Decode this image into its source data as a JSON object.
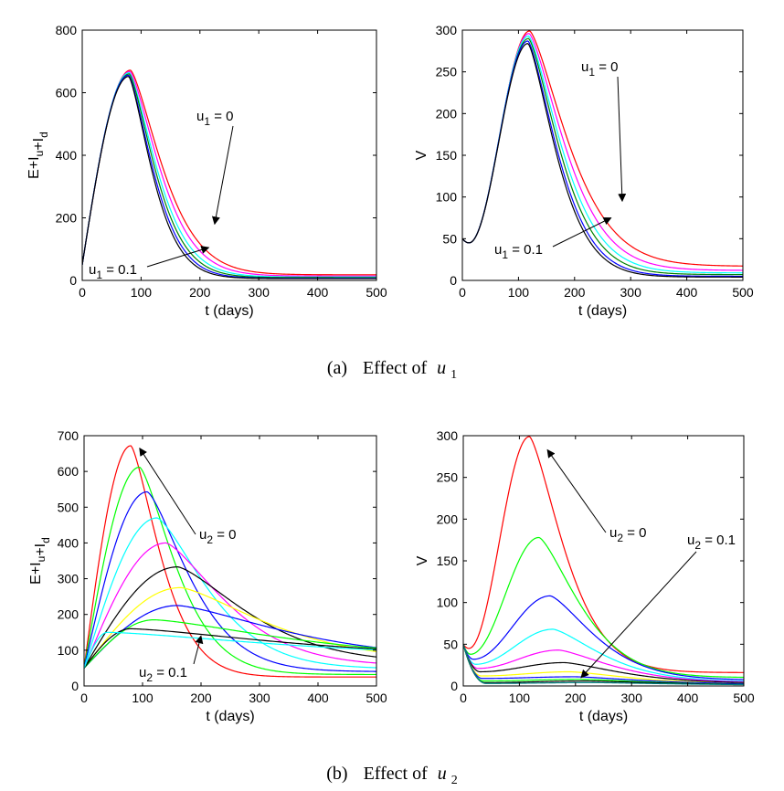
{
  "captions": {
    "a": {
      "prefix": "(a)",
      "text": "Effect of",
      "var": "u",
      "sub": "1"
    },
    "b": {
      "prefix": "(b)",
      "text": "Effect of",
      "var": "u",
      "sub": "2"
    }
  },
  "chart_data": [
    {
      "id": "a_left",
      "type": "line",
      "xlabel": "t (days)",
      "ylabel": "E+I_u+I_d",
      "xlim": [
        0,
        500
      ],
      "ylim": [
        0,
        800
      ],
      "xticks": [
        0,
        100,
        200,
        300,
        400,
        500
      ],
      "yticks": [
        0,
        200,
        400,
        600,
        800
      ],
      "grid": false,
      "annotations": [
        {
          "main": "u",
          "sub": "1",
          "rest": " = 0",
          "arrow_to": [
            225,
            180
          ]
        },
        {
          "main": "u",
          "sub": "1",
          "rest": " = 0.1",
          "arrow_to": [
            215,
            105
          ]
        }
      ],
      "series": [
        {
          "color": "#ff0000",
          "start": 50,
          "peak_t": 82,
          "peak": 672,
          "end": 18,
          "tau": 75
        },
        {
          "color": "#ff00ff",
          "start": 50,
          "peak_t": 81,
          "peak": 668,
          "end": 14,
          "tau": 70
        },
        {
          "color": "#00ffff",
          "start": 50,
          "peak_t": 80,
          "peak": 664,
          "end": 11,
          "tau": 65
        },
        {
          "color": "#008000",
          "start": 50,
          "peak_t": 80,
          "peak": 660,
          "end": 9,
          "tau": 61
        },
        {
          "color": "#0000ff",
          "start": 50,
          "peak_t": 79,
          "peak": 656,
          "end": 7,
          "tau": 58
        },
        {
          "color": "#000000",
          "start": 50,
          "peak_t": 79,
          "peak": 652,
          "end": 6,
          "tau": 55
        }
      ]
    },
    {
      "id": "a_right",
      "type": "line",
      "xlabel": "t (days)",
      "ylabel": "V",
      "xlim": [
        0,
        500
      ],
      "ylim": [
        0,
        300
      ],
      "xticks": [
        0,
        100,
        200,
        300,
        400,
        500
      ],
      "yticks": [
        0,
        50,
        100,
        150,
        200,
        250,
        300
      ],
      "grid": false,
      "annotations": [
        {
          "main": "u",
          "sub": "1",
          "rest": " = 0",
          "arrow_to": [
            285,
            95
          ]
        },
        {
          "main": "u",
          "sub": "1",
          "rest": " = 0.1",
          "arrow_to": [
            265,
            75
          ]
        }
      ],
      "series": [
        {
          "color": "#ff0000",
          "start": 50,
          "dip_t": 12,
          "dip": 45,
          "peak_t": 120,
          "peak": 299,
          "end": 17,
          "tau": 95
        },
        {
          "color": "#ff00ff",
          "start": 50,
          "dip_t": 12,
          "dip": 45,
          "peak_t": 119,
          "peak": 296,
          "end": 12,
          "tau": 88
        },
        {
          "color": "#00ffff",
          "start": 50,
          "dip_t": 12,
          "dip": 45,
          "peak_t": 118,
          "peak": 293,
          "end": 9,
          "tau": 82
        },
        {
          "color": "#008000",
          "start": 50,
          "dip_t": 12,
          "dip": 45,
          "peak_t": 118,
          "peak": 290,
          "end": 7,
          "tau": 77
        },
        {
          "color": "#0000ff",
          "start": 50,
          "dip_t": 12,
          "dip": 45,
          "peak_t": 117,
          "peak": 287,
          "end": 5,
          "tau": 73
        },
        {
          "color": "#000000",
          "start": 50,
          "dip_t": 12,
          "dip": 45,
          "peak_t": 117,
          "peak": 284,
          "end": 4,
          "tau": 70
        }
      ]
    },
    {
      "id": "b_left",
      "type": "line",
      "xlabel": "t (days)",
      "ylabel": "E+I_u+I_d",
      "xlim": [
        0,
        500
      ],
      "ylim": [
        0,
        700
      ],
      "xticks": [
        0,
        100,
        200,
        300,
        400,
        500
      ],
      "yticks": [
        0,
        100,
        200,
        300,
        400,
        500,
        600,
        700
      ],
      "grid": false,
      "annotations": [
        {
          "main": "u",
          "sub": "2",
          "rest": " = 0",
          "arrow_to": [
            95,
            665
          ]
        },
        {
          "main": "u",
          "sub": "2",
          "rest": " = 0.1",
          "arrow_to": [
            200,
            140
          ]
        }
      ],
      "series": [
        {
          "color": "#ff0000",
          "start": 50,
          "peak_t": 80,
          "peak": 672,
          "end": 25,
          "tau": 70
        },
        {
          "color": "#00ff00",
          "start": 50,
          "peak_t": 95,
          "peak": 612,
          "end": 32,
          "tau": 85
        },
        {
          "color": "#0000ff",
          "start": 50,
          "peak_t": 108,
          "peak": 543,
          "end": 40,
          "tau": 100
        },
        {
          "color": "#00ffff",
          "start": 50,
          "peak_t": 125,
          "peak": 470,
          "end": 48,
          "tau": 120
        },
        {
          "color": "#ff00ff",
          "start": 50,
          "peak_t": 140,
          "peak": 400,
          "end": 56,
          "tau": 140
        },
        {
          "color": "#000000",
          "start": 50,
          "peak_t": 160,
          "peak": 333,
          "end": 64,
          "tau": 165
        },
        {
          "color": "#ffff00",
          "start": 50,
          "peak_t": 165,
          "peak": 275,
          "end": 70,
          "tau": 200
        },
        {
          "color": "#0000ff",
          "start": 50,
          "peak_t": 160,
          "peak": 225,
          "end": 75,
          "tau": 250
        },
        {
          "color": "#00ff00",
          "start": 50,
          "peak_t": 120,
          "peak": 185,
          "end": 80,
          "tau": 300
        },
        {
          "color": "#000000",
          "start": 50,
          "peak_t": 80,
          "peak": 160,
          "end": 82,
          "tau": 350
        },
        {
          "color": "#00ffff",
          "start": 50,
          "peak_t": 40,
          "peak": 150,
          "end": 80,
          "tau": 400
        }
      ]
    },
    {
      "id": "b_right",
      "type": "line",
      "xlabel": "t (days)",
      "ylabel": "V",
      "xlim": [
        0,
        500
      ],
      "ylim": [
        0,
        300
      ],
      "xticks": [
        0,
        100,
        200,
        300,
        400,
        500
      ],
      "yticks": [
        0,
        50,
        100,
        150,
        200,
        250,
        300
      ],
      "grid": false,
      "annotations": [
        {
          "main": "u",
          "sub": "2",
          "rest": " = 0",
          "arrow_to": [
            150,
            283
          ]
        },
        {
          "main": "u",
          "sub": "2",
          "rest": " = 0.1",
          "arrow_to": [
            210,
            10
          ]
        }
      ],
      "series": [
        {
          "color": "#ff0000",
          "start": 50,
          "dip_t": 10,
          "dip": 45,
          "peak_t": 118,
          "peak": 299,
          "end": 16,
          "tau": 85
        },
        {
          "color": "#00ff00",
          "start": 50,
          "dip_t": 13,
          "dip": 38,
          "peak_t": 135,
          "peak": 178,
          "end": 10,
          "tau": 100
        },
        {
          "color": "#0000ff",
          "start": 50,
          "dip_t": 18,
          "dip": 32,
          "peak_t": 155,
          "peak": 108,
          "end": 7,
          "tau": 110
        },
        {
          "color": "#00ffff",
          "start": 50,
          "dip_t": 22,
          "dip": 26,
          "peak_t": 160,
          "peak": 68,
          "end": 5,
          "tau": 120
        },
        {
          "color": "#ff00ff",
          "start": 50,
          "dip_t": 26,
          "dip": 21,
          "peak_t": 170,
          "peak": 43,
          "end": 4,
          "tau": 130
        },
        {
          "color": "#000000",
          "start": 50,
          "dip_t": 30,
          "dip": 17,
          "peak_t": 180,
          "peak": 28,
          "end": 3,
          "tau": 140
        },
        {
          "color": "#ffff00",
          "start": 50,
          "dip_t": 32,
          "dip": 12,
          "peak_t": 190,
          "peak": 17,
          "end": 2,
          "tau": 150
        },
        {
          "color": "#0000ff",
          "start": 50,
          "dip_t": 34,
          "dip": 9,
          "peak_t": 200,
          "peak": 11,
          "end": 2,
          "tau": 160
        },
        {
          "color": "#00ff00",
          "start": 50,
          "dip_t": 36,
          "dip": 6,
          "peak_t": 210,
          "peak": 8,
          "end": 1,
          "tau": 170
        },
        {
          "color": "#000000",
          "start": 50,
          "dip_t": 38,
          "dip": 4,
          "peak_t": 220,
          "peak": 6,
          "end": 1,
          "tau": 180
        },
        {
          "color": "#008080",
          "start": 50,
          "dip_t": 40,
          "dip": 3,
          "peak_t": 230,
          "peak": 4,
          "end": 1,
          "tau": 190
        }
      ]
    }
  ]
}
